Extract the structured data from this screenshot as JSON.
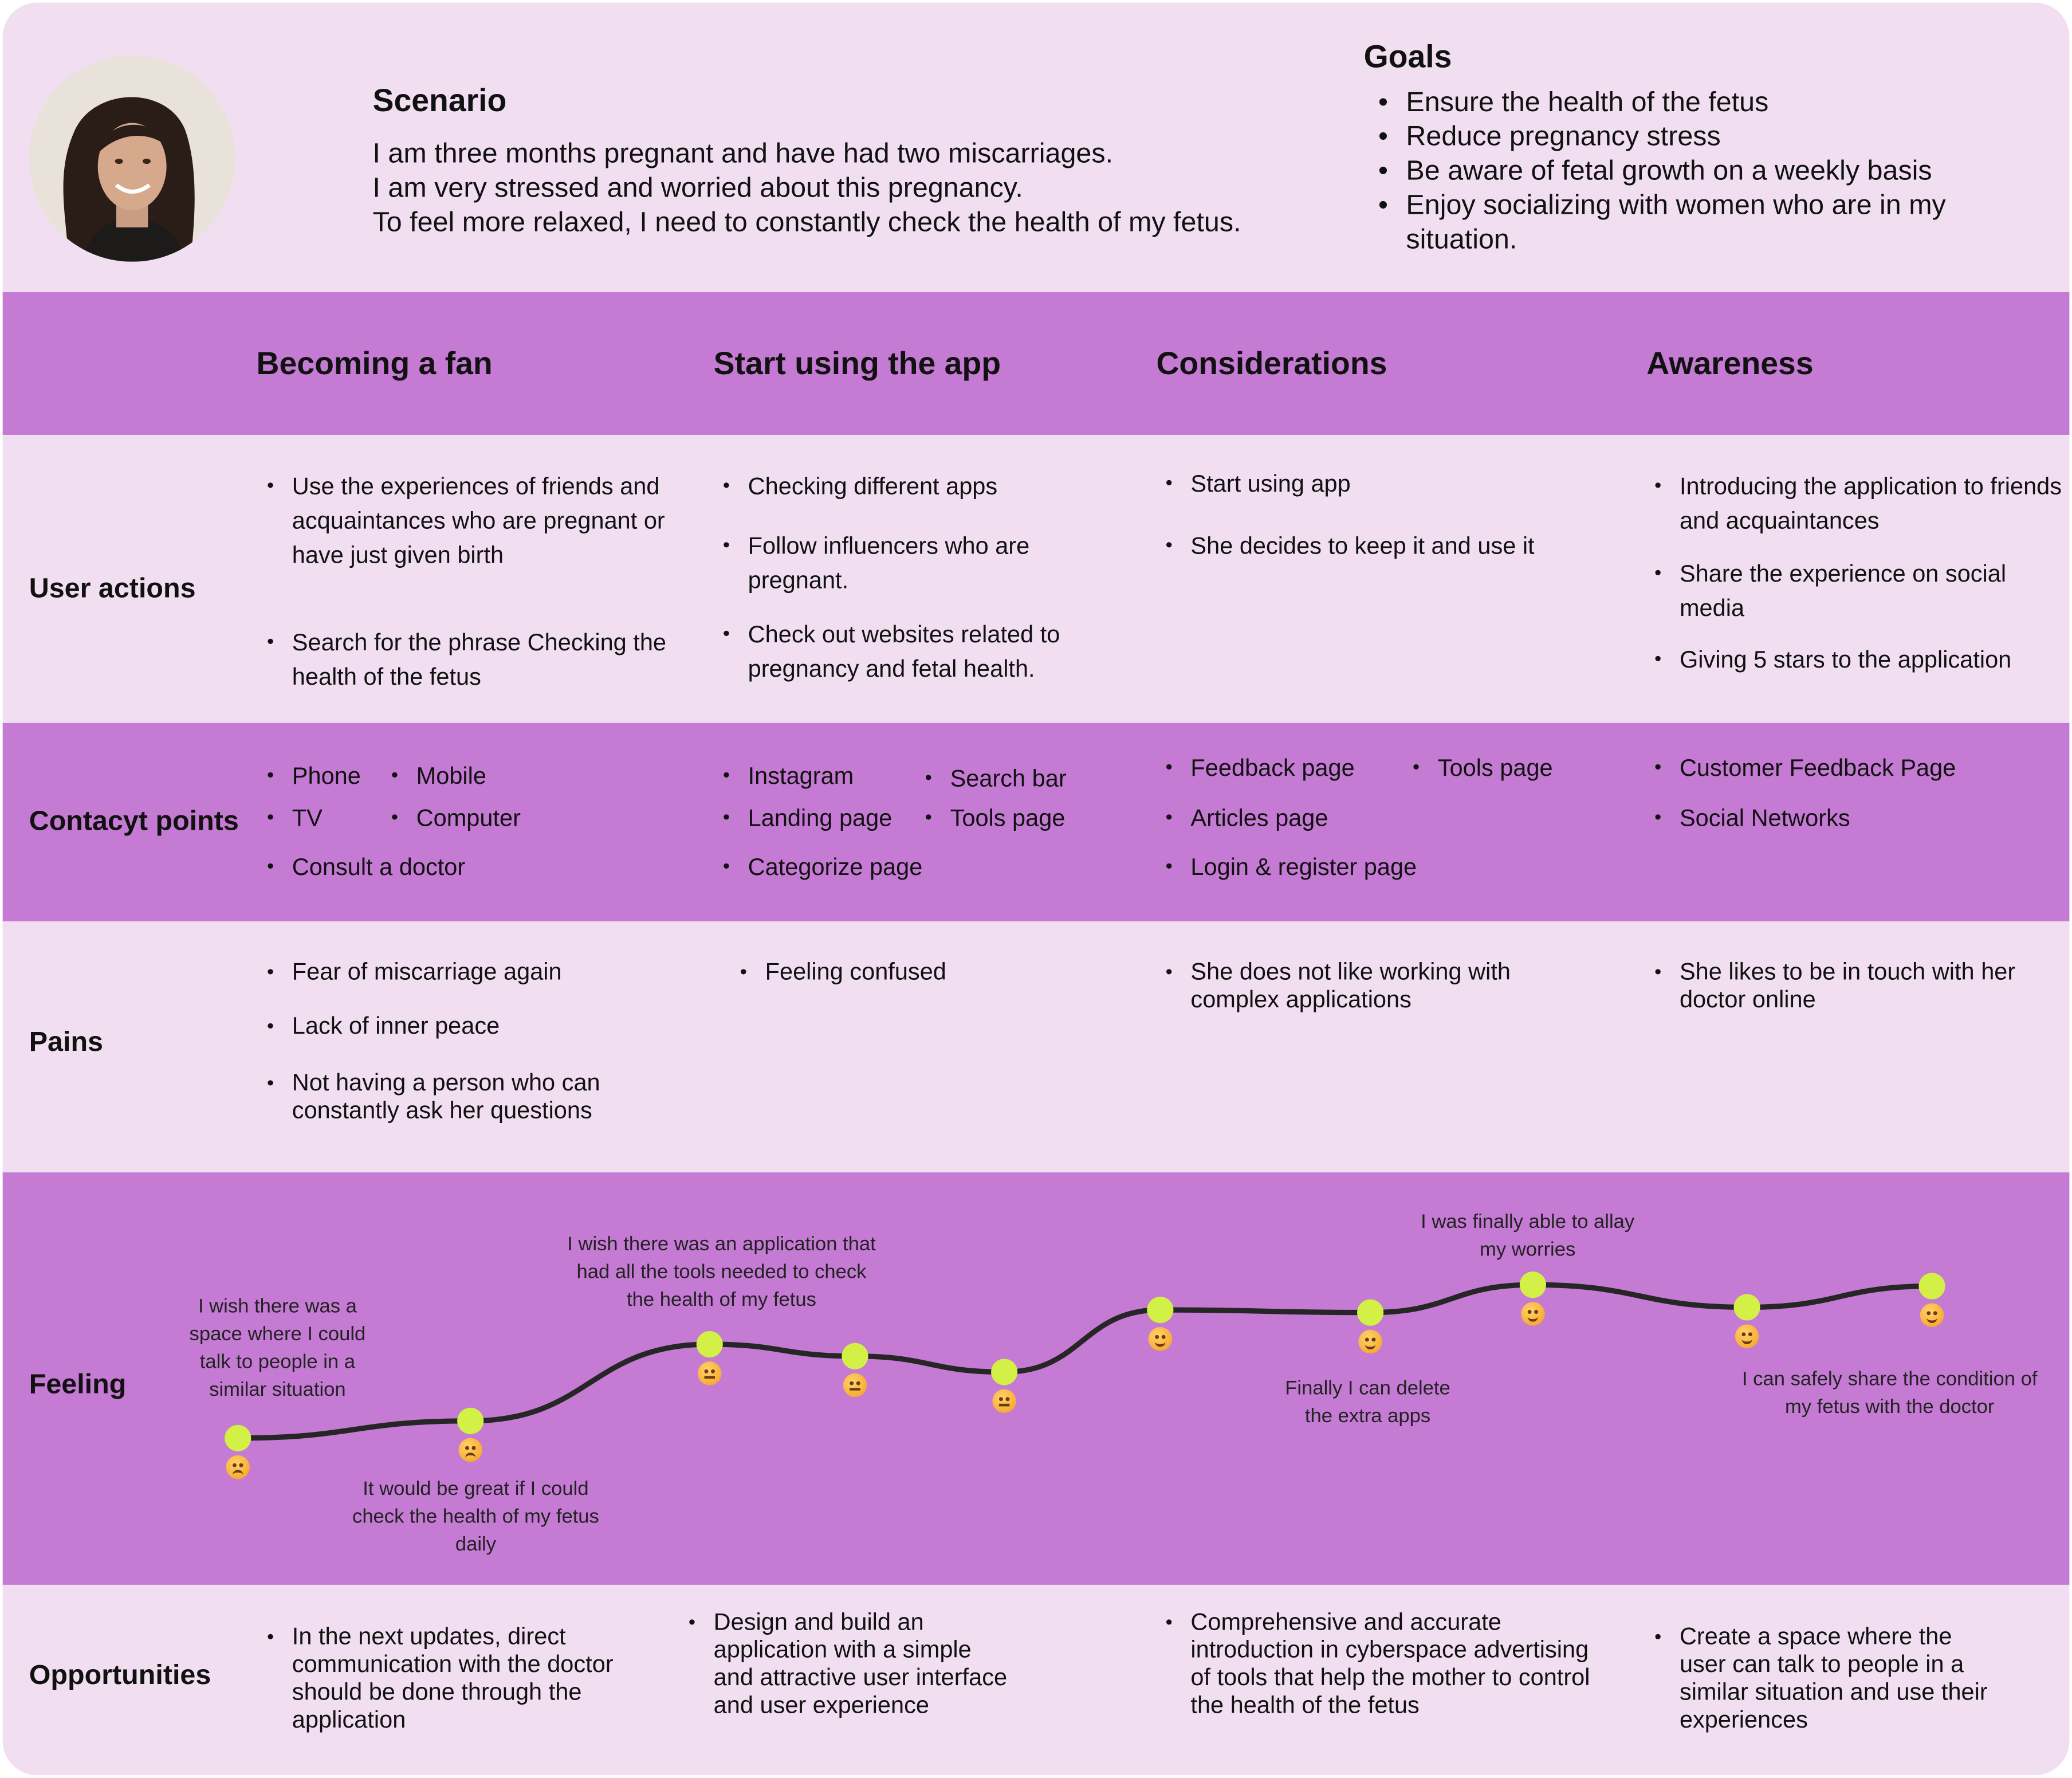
{
  "scenario": {
    "title": "Scenario",
    "lines": [
      "I am three months pregnant and have had two miscarriages.",
      "I am very stressed and worried about this pregnancy.",
      "To feel more relaxed, I need to constantly check the health of my fetus."
    ]
  },
  "goals": {
    "title": "Goals",
    "items": [
      "Ensure the health of the fetus",
      "Reduce pregnancy stress",
      "Be aware of fetal growth on a weekly basis",
      "Enjoy socializing with women who are in my situation."
    ]
  },
  "stages": [
    "Becoming a fan",
    "Start using the app",
    "Considerations",
    "Awareness"
  ],
  "row_labels": {
    "user_actions": "User actions",
    "contact_points": "Contacyt points",
    "pains": "Pains",
    "feeling": "Feeling",
    "opportunities": "Opportunities"
  },
  "user_actions": [
    [
      "Use the experiences of friends and acquaintances who are pregnant or have just given birth",
      "Search for the phrase Checking the health of the fetus"
    ],
    [
      "Checking different apps",
      "Follow influencers who are pregnant.",
      "Check out websites related to pregnancy and fetal health."
    ],
    [
      "Start using app",
      "She decides to keep it and use it"
    ],
    [
      "Introducing the application to friends and acquaintances",
      "Share the experience on social media",
      "Giving 5 stars to the application"
    ]
  ],
  "contact_points": [
    [
      "Phone",
      "Mobile",
      "TV",
      "Computer",
      "Consult a doctor"
    ],
    [
      "Instagram",
      "Search bar",
      "Landing page",
      "Tools page",
      "Categorize page"
    ],
    [
      "Feedback page",
      "Tools page",
      "Articles page",
      "Login & register page"
    ],
    [
      "Customer Feedback Page",
      "Social Networks"
    ]
  ],
  "pains": [
    [
      "Fear of miscarriage again",
      "Lack of inner peace",
      "Not having a person who can constantly ask her questions"
    ],
    [
      "Feeling confused"
    ],
    [
      "She does not like working with complex applications"
    ],
    [
      "She likes to be in touch with her doctor online"
    ]
  ],
  "feeling": {
    "points": [
      {
        "mood": "sad"
      },
      {
        "mood": "sad"
      },
      {
        "mood": "neutral"
      },
      {
        "mood": "neutral"
      },
      {
        "mood": "neutral"
      },
      {
        "mood": "happy"
      },
      {
        "mood": "happy"
      },
      {
        "mood": "happy"
      },
      {
        "mood": "happy"
      },
      {
        "mood": "happy"
      }
    ],
    "quotes": [
      "I wish there was a space where I could talk to people in a similar situation",
      "It would be great if I could check the health of my fetus daily",
      "I wish there was an application that had all the tools needed to check the health of my fetus",
      "Finally I can delete the extra apps",
      "I was finally able to allay my worries",
      "I can safely share the condition of my fetus with the doctor"
    ],
    "curve_color": "#262626",
    "point_color": "#d2f046"
  },
  "opportunities": [
    "In the next updates, direct communication with the doctor should be done through the application",
    "Design and build an application with a simple and attractive user interface and user experience",
    "Comprehensive and accurate introduction in cyberspace advertising of tools that help the mother to control the health of the fetus",
    "Create a space where the user can talk to people in a similar situation and use their experiences"
  ],
  "colors": {
    "background": "#f1dff1",
    "band": "#c57ad4",
    "text": "#111111"
  }
}
